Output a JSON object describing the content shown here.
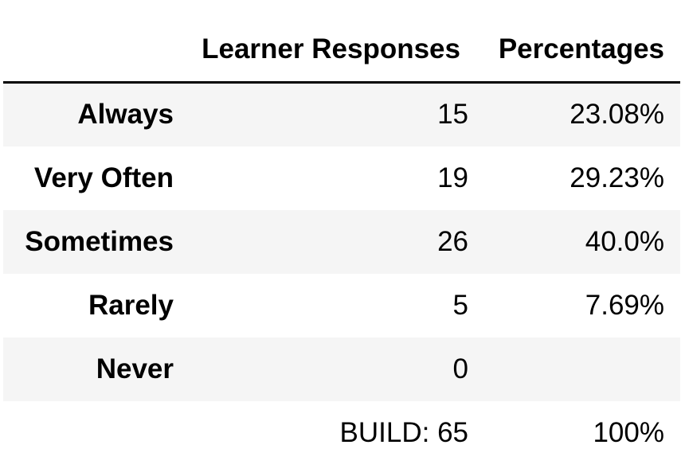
{
  "table": {
    "columns": {
      "index": "",
      "responses": "Learner Responses",
      "percentages": "Percentages"
    },
    "rows": [
      {
        "label": "Always",
        "responses": "15",
        "percentage": "23.08%"
      },
      {
        "label": "Very Often",
        "responses": "19",
        "percentage": "29.23%"
      },
      {
        "label": "Sometimes",
        "responses": "26",
        "percentage": "40.0%"
      },
      {
        "label": "Rarely",
        "responses": "5",
        "percentage": "7.69%"
      },
      {
        "label": "Never",
        "responses": "0",
        "percentage": ""
      }
    ],
    "total": {
      "label": "",
      "responses": "BUILD: 65",
      "percentage": "100%"
    }
  },
  "colors": {
    "stripe": "#f5f5f5",
    "header_rule": "#000000",
    "text": "#000000"
  }
}
